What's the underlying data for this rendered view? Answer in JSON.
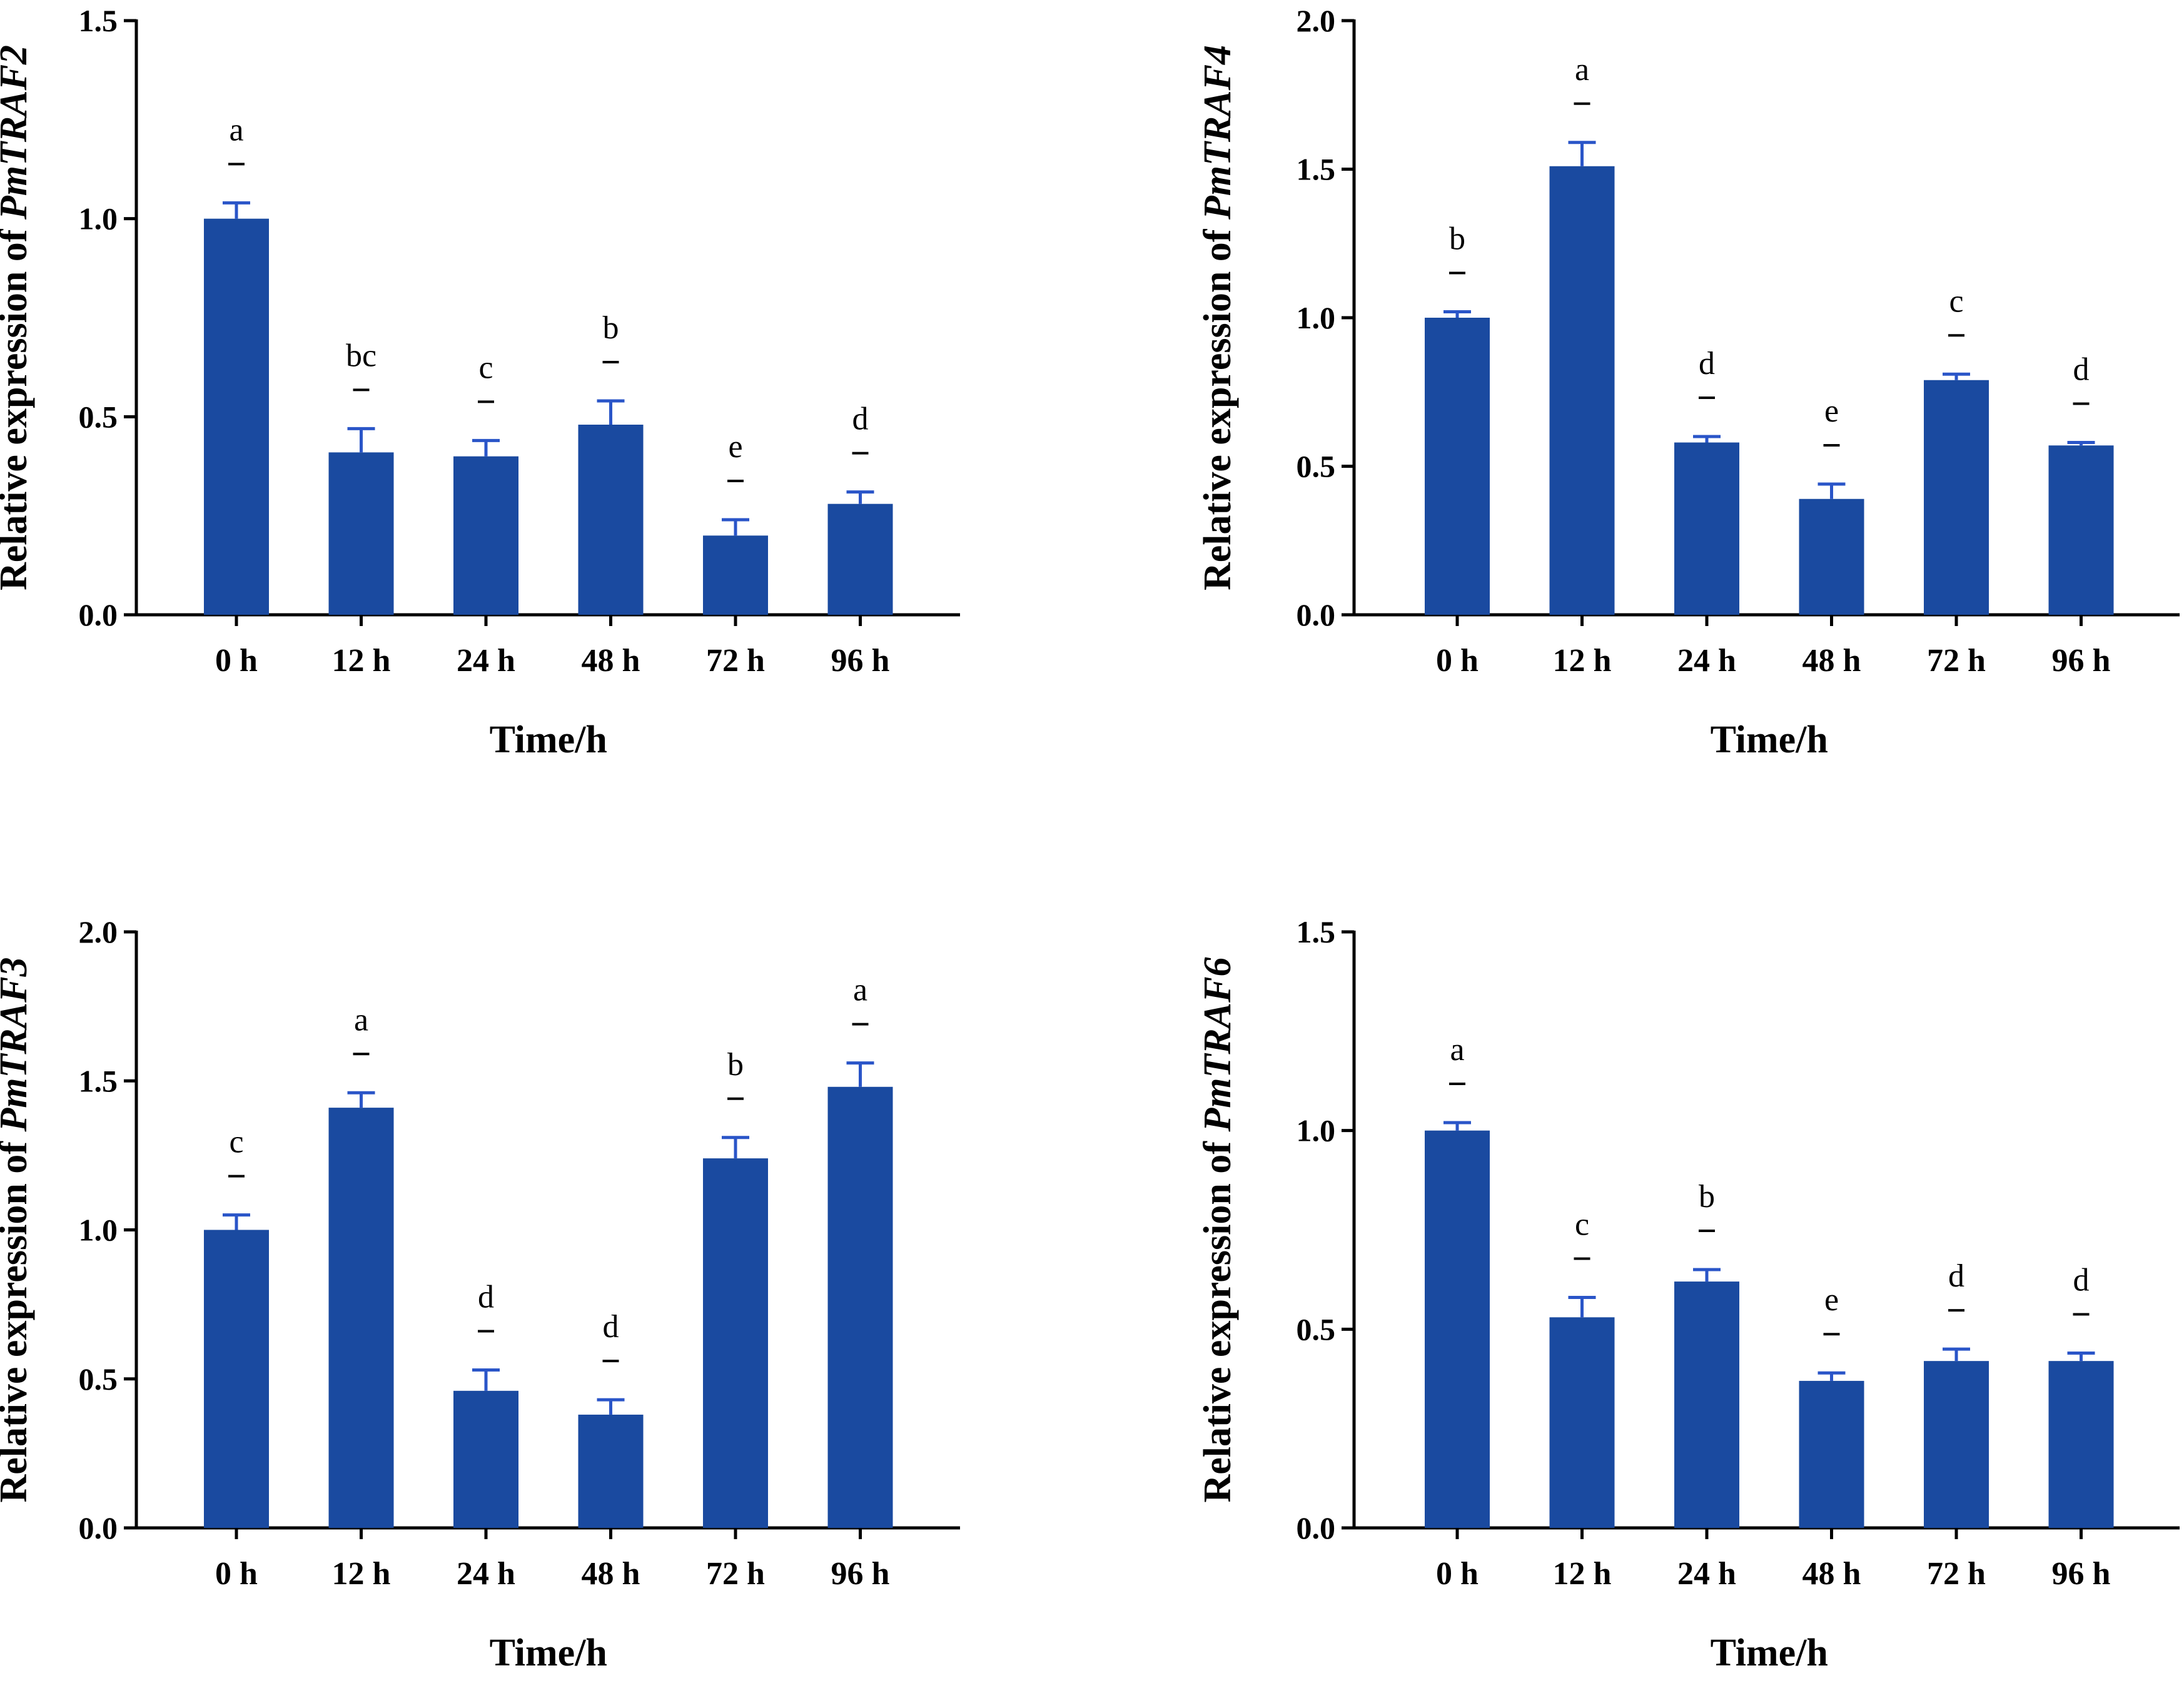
{
  "chart_data": [
    {
      "type": "bar",
      "gene": "PmTRAF2",
      "ylabel_prefix": "Relative expression of ",
      "xlabel": "Time/h",
      "categories": [
        "0 h",
        "12 h",
        "24 h",
        "48 h",
        "72 h",
        "96 h"
      ],
      "values": [
        1.0,
        0.41,
        0.4,
        0.48,
        0.2,
        0.28
      ],
      "errors": [
        0.04,
        0.06,
        0.04,
        0.06,
        0.04,
        0.03
      ],
      "letters": [
        "a",
        "bc",
        "c",
        "b",
        "e",
        "d"
      ],
      "ylim": [
        0,
        1.5
      ],
      "yticks": [
        "0.0",
        "0.5",
        "1.0",
        "1.5"
      ],
      "ytick_values": [
        0,
        0.5,
        1.0,
        1.5
      ],
      "bar_color": "#1a4aa0"
    },
    {
      "type": "bar",
      "gene": "PmTRAF4",
      "ylabel_prefix": "Relative expression of ",
      "xlabel": "Time/h",
      "categories": [
        "0 h",
        "12 h",
        "24 h",
        "48 h",
        "72 h",
        "96 h"
      ],
      "values": [
        1.0,
        1.51,
        0.58,
        0.39,
        0.79,
        0.57
      ],
      "errors": [
        0.02,
        0.08,
        0.02,
        0.05,
        0.02,
        0.01
      ],
      "letters": [
        "b",
        "a",
        "d",
        "e",
        "c",
        "d"
      ],
      "ylim": [
        0,
        2.0
      ],
      "yticks": [
        "0.0",
        "0.5",
        "1.0",
        "1.5",
        "2.0"
      ],
      "ytick_values": [
        0,
        0.5,
        1.0,
        1.5,
        2.0
      ],
      "bar_color": "#1a4aa0"
    },
    {
      "type": "bar",
      "gene": "PmTRAF3",
      "ylabel_prefix": "Relative expression of ",
      "xlabel": "Time/h",
      "categories": [
        "0 h",
        "12 h",
        "24 h",
        "48 h",
        "72 h",
        "96 h"
      ],
      "values": [
        1.0,
        1.41,
        0.46,
        0.38,
        1.24,
        1.48
      ],
      "errors": [
        0.05,
        0.05,
        0.07,
        0.05,
        0.07,
        0.08
      ],
      "letters": [
        "c",
        "a",
        "d",
        "d",
        "b",
        "a"
      ],
      "ylim": [
        0,
        2.0
      ],
      "yticks": [
        "0.0",
        "0.5",
        "1.0",
        "1.5",
        "2.0"
      ],
      "ytick_values": [
        0,
        0.5,
        1.0,
        1.5,
        2.0
      ],
      "bar_color": "#1a4aa0"
    },
    {
      "type": "bar",
      "gene": "PmTRAF6",
      "ylabel_prefix": "Relative expression of ",
      "xlabel": "Time/h",
      "categories": [
        "0 h",
        "12 h",
        "24 h",
        "48 h",
        "72 h",
        "96 h"
      ],
      "values": [
        1.0,
        0.53,
        0.62,
        0.37,
        0.42,
        0.42
      ],
      "errors": [
        0.02,
        0.05,
        0.03,
        0.02,
        0.03,
        0.02
      ],
      "letters": [
        "a",
        "c",
        "b",
        "e",
        "d",
        "d"
      ],
      "ylim": [
        0,
        1.5
      ],
      "yticks": [
        "0.0",
        "0.5",
        "1.0",
        "1.5"
      ],
      "ytick_values": [
        0,
        0.5,
        1.0,
        1.5
      ],
      "bar_color": "#1a4aa0"
    }
  ]
}
